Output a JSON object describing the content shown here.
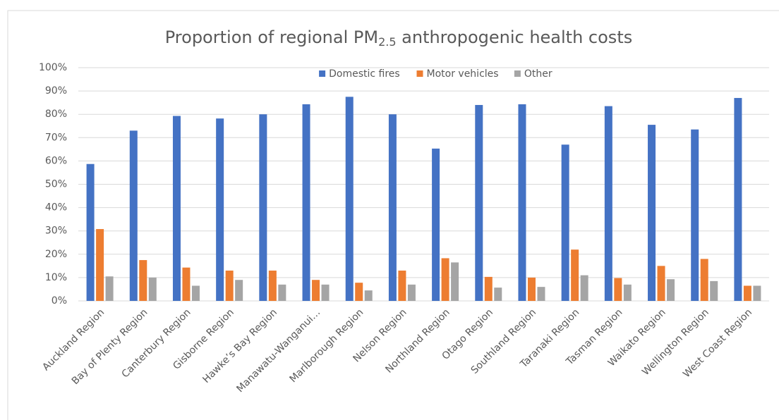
{
  "chart_data": {
    "type": "bar",
    "title": [
      "Proportion of regional PM",
      "2.5",
      " anthropogenic health costs"
    ],
    "categories": [
      "Auckland Region",
      "Bay of Plenty Region",
      "Canterbury Region",
      "Gisborne Region",
      "Hawke’s Bay Region",
      "Manawatu-Wanganui…",
      "Marlborough Region",
      "Nelson Region",
      "Northland Region",
      "Otago Region",
      "Southland Region",
      "Taranaki Region",
      "Tasman Region",
      "Waikato Region",
      "Wellington Region",
      "West Coast Region"
    ],
    "series": [
      {
        "name": "Domestic fires",
        "color": "#4472c4",
        "values": [
          58.7,
          73,
          79.3,
          78.2,
          80,
          84.3,
          87.5,
          80,
          65.3,
          84,
          84.3,
          67,
          83.5,
          75.5,
          73.5,
          87
        ]
      },
      {
        "name": "Motor vehicles",
        "color": "#ed7d31",
        "values": [
          30.8,
          17.5,
          14.3,
          13,
          13,
          9,
          7.8,
          13,
          18.3,
          10.3,
          10,
          22,
          9.8,
          15,
          18,
          6.5
        ]
      },
      {
        "name": "Other",
        "color": "#a5a5a5",
        "values": [
          10.5,
          10,
          6.5,
          9,
          7,
          7,
          4.5,
          7,
          16.5,
          5.7,
          6,
          11,
          7,
          9.3,
          8.5,
          6.5
        ]
      }
    ],
    "ylim": [
      0,
      100
    ],
    "yticks": [
      {
        "value": 0,
        "label": "0%"
      },
      {
        "value": 10,
        "label": "10%"
      },
      {
        "value": 20,
        "label": "20%"
      },
      {
        "value": 30,
        "label": "30%"
      },
      {
        "value": 40,
        "label": "40%"
      },
      {
        "value": 50,
        "label": "50%"
      },
      {
        "value": 60,
        "label": "60%"
      },
      {
        "value": 70,
        "label": "70%"
      },
      {
        "value": 80,
        "label": "80%"
      },
      {
        "value": 90,
        "label": "90%"
      },
      {
        "value": 100,
        "label": "100%"
      }
    ],
    "grid": true,
    "legend": "top"
  }
}
